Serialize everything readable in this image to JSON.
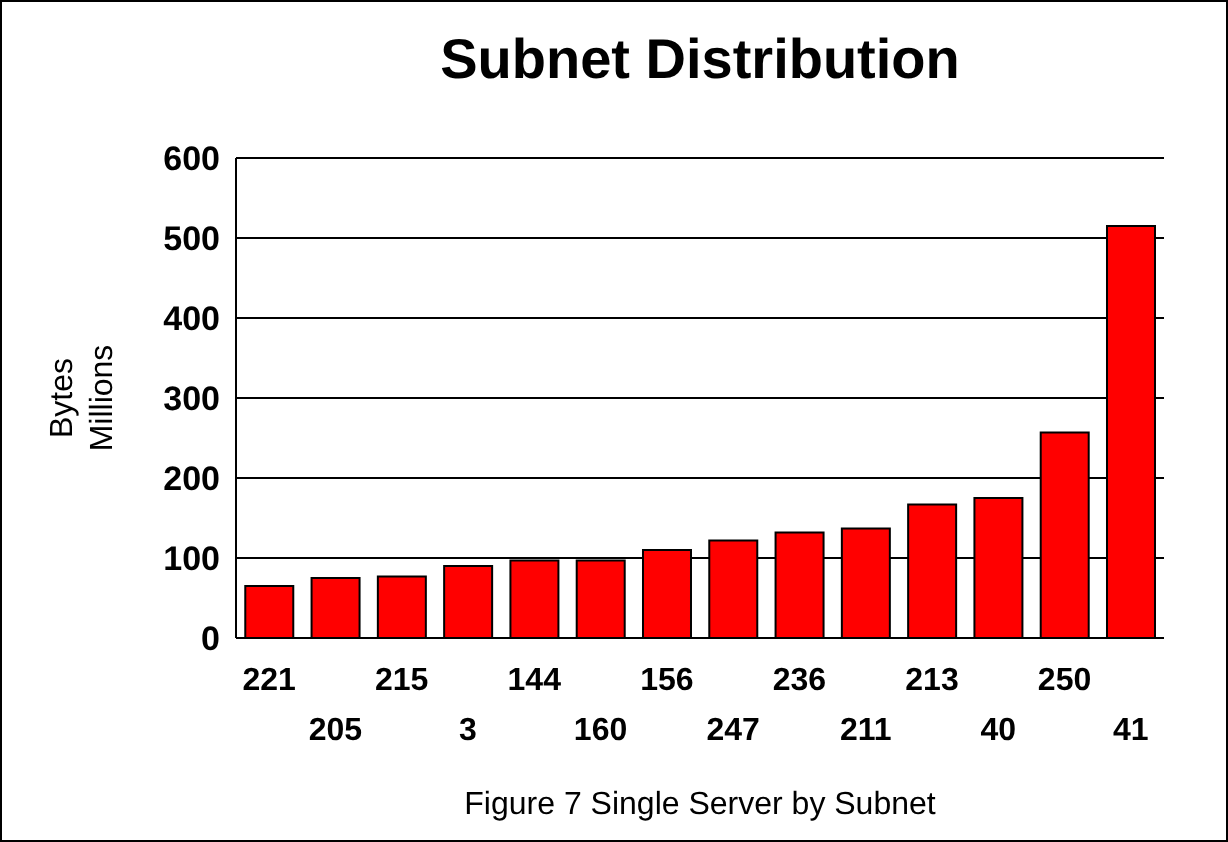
{
  "chart_data": {
    "type": "bar",
    "title": "Subnet Distribution",
    "ylabel": "Bytes\nMillions",
    "xlabel": "Figure 7 Single Server by Subnet",
    "categories": [
      "221",
      "205",
      "215",
      "3",
      "144",
      "160",
      "156",
      "247",
      "236",
      "211",
      "213",
      "40",
      "250",
      "41"
    ],
    "values": [
      65,
      75,
      77,
      90,
      97,
      97,
      110,
      122,
      132,
      137,
      167,
      175,
      257,
      515
    ],
    "color": "#ff0000",
    "ylim": [
      0,
      600
    ],
    "yticks": [
      0,
      100,
      200,
      300,
      400,
      500,
      600
    ],
    "grid": "y"
  }
}
